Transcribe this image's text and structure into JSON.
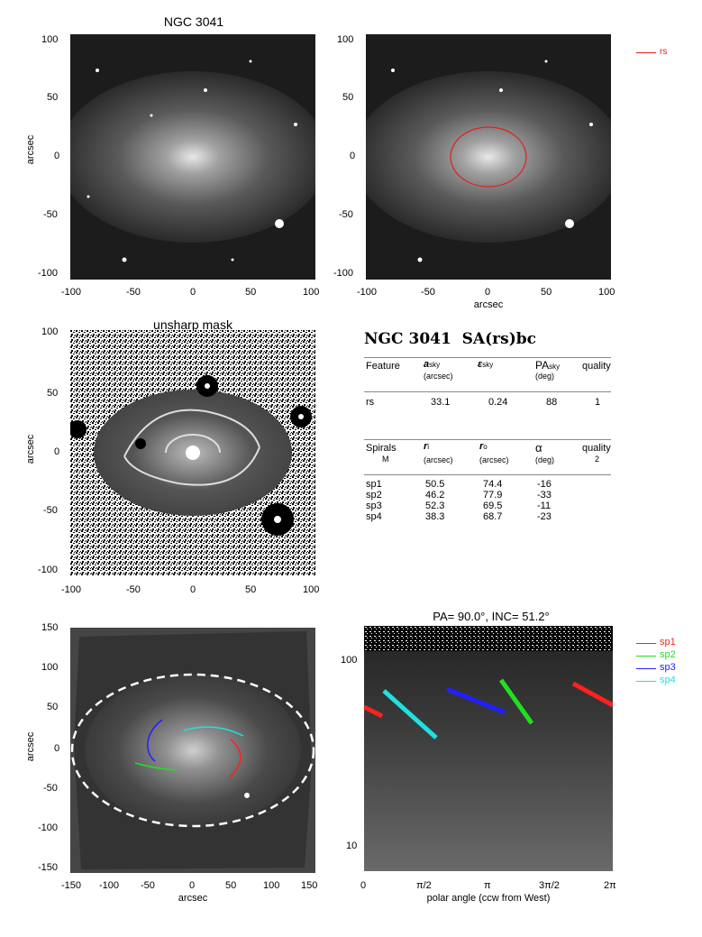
{
  "panel1": {
    "title": "NGC 3041",
    "ylabel": "arcsec",
    "xticks": [
      "-100",
      "-50",
      "0",
      "50",
      "100"
    ],
    "yticks": [
      "100",
      "50",
      "0",
      "-50",
      "-100"
    ]
  },
  "panel2": {
    "xlabel": "arcsec",
    "xticks": [
      "-100",
      "-50",
      "0",
      "50",
      "100"
    ],
    "yticks": [
      "100",
      "50",
      "0",
      "-50",
      "-100"
    ],
    "legend": "rs",
    "ring_color": "#e0201a"
  },
  "panel3": {
    "title": "unsharp mask",
    "ylabel": "arcsec",
    "xticks": [
      "-100",
      "-50",
      "0",
      "50",
      "100"
    ],
    "yticks": [
      "100",
      "50",
      "0",
      "-50",
      "-100"
    ]
  },
  "info": {
    "heading": "NGC 3041  SA(rs)bc",
    "features_header": {
      "c1": "Feature",
      "c2": "a",
      "c2sub": "sky",
      "c2unit": "(arcsec)",
      "c3": "ε",
      "c3sub": "sky",
      "c4": "PA",
      "c4sub": "sky",
      "c4unit": "(deg)",
      "c5": "quality"
    },
    "features": [
      {
        "name": "rs",
        "a": "33.1",
        "eps": "0.24",
        "pa": "88",
        "q": "1"
      }
    ],
    "spirals_header": {
      "c1": "Spirals",
      "c1b": "M",
      "c2": "r",
      "c2sub": "i",
      "c2unit": "(arcsec)",
      "c3": "r",
      "c3sub": "o",
      "c3unit": "(arcsec)",
      "c4": "α",
      "c4unit": "(deg)",
      "c5": "quality",
      "c5b": "2"
    },
    "spirals": [
      {
        "name": "sp1",
        "ri": "50.5",
        "ro": "74.4",
        "alpha": "-16"
      },
      {
        "name": "sp2",
        "ri": "46.2",
        "ro": "77.9",
        "alpha": "-33"
      },
      {
        "name": "sp3",
        "ri": "52.3",
        "ro": "69.5",
        "alpha": "-11"
      },
      {
        "name": "sp4",
        "ri": "38.3",
        "ro": "68.7",
        "alpha": "-23"
      }
    ]
  },
  "panel5": {
    "xlabel": "arcsec",
    "ylabel": "arcsec",
    "xticks": [
      "-150",
      "-100",
      "-50",
      "0",
      "50",
      "100",
      "150"
    ],
    "yticks": [
      "150",
      "100",
      "50",
      "0",
      "-50",
      "-100",
      "-150"
    ]
  },
  "panel6": {
    "title": "PA=  90.0°, INC=  51.2°",
    "xlabel": "polar angle (ccw from West)",
    "xticks": [
      "0",
      "π/2",
      "π",
      "3π/2",
      "2π"
    ],
    "yticks": [
      "100",
      "10"
    ],
    "legend": [
      {
        "name": "sp1",
        "color": "#ff2020"
      },
      {
        "name": "sp2",
        "color": "#20e020"
      },
      {
        "name": "sp3",
        "color": "#2020ff"
      },
      {
        "name": "sp4",
        "color": "#20e0e0"
      }
    ]
  }
}
